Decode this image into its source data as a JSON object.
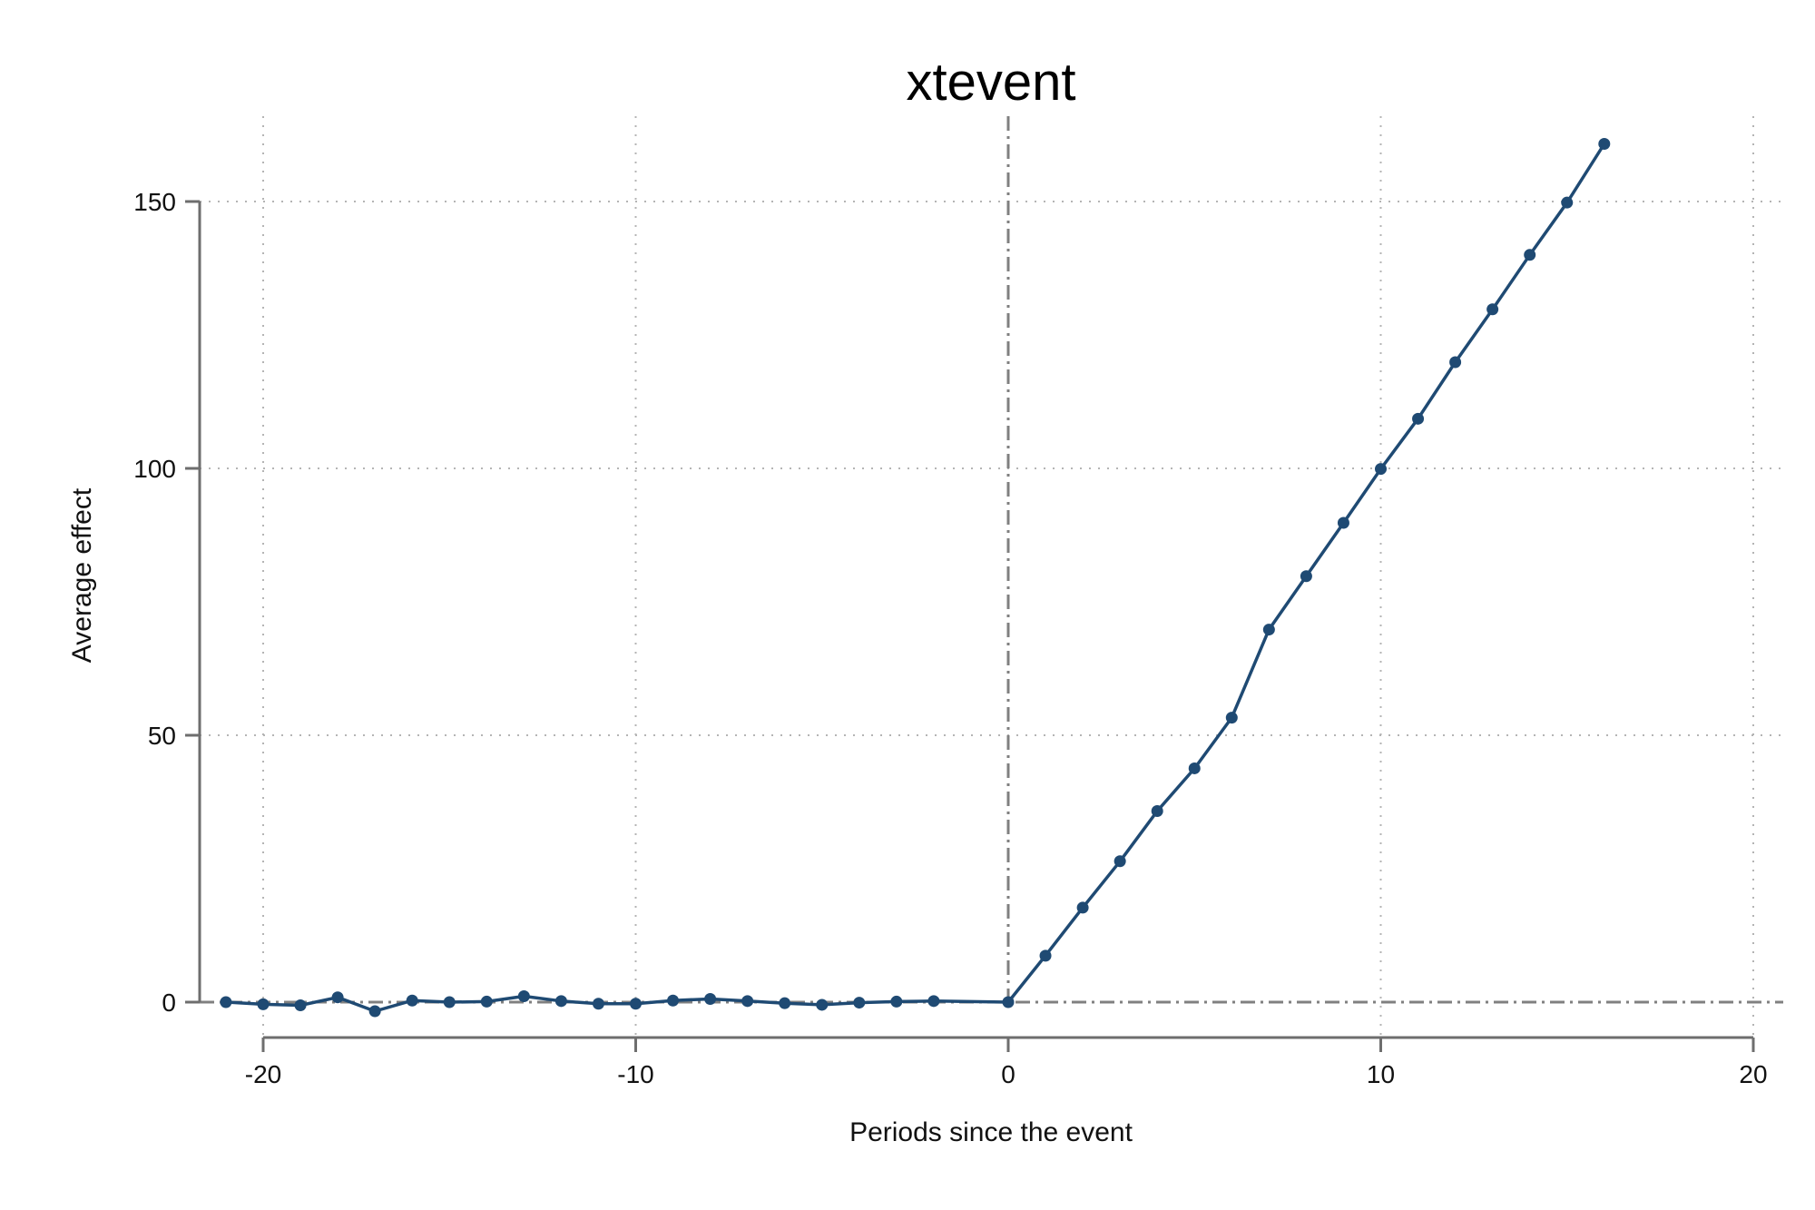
{
  "chart_data": {
    "type": "line",
    "title": "xtevent",
    "xlabel": "Periods since the event",
    "ylabel": "Average effect",
    "xlim": [
      -21.5,
      21
    ],
    "ylim": [
      -7,
      165
    ],
    "xticks": [
      -20,
      -10,
      0,
      10,
      20
    ],
    "xtick_labels": [
      "-20",
      "-10",
      "0",
      "10",
      "20"
    ],
    "yticks": [
      0,
      50,
      100,
      150
    ],
    "ytick_labels": [
      "0",
      "50",
      "100",
      "150"
    ],
    "grid": true,
    "reference_lines": {
      "x": 0,
      "y": 0
    },
    "series": [
      {
        "color": "#1f4a73",
        "x": [
          -21,
          -20,
          -19,
          -18,
          -17,
          -16,
          -15,
          -14,
          -13,
          -12,
          -11,
          -10,
          -9,
          -8,
          -7,
          -6,
          -5,
          -4,
          -3,
          -2,
          0,
          1,
          2,
          3,
          4,
          5,
          6,
          7,
          8,
          9,
          10,
          11,
          12,
          13,
          14,
          15,
          16
        ],
        "y": [
          0.0,
          -0.4,
          -0.6,
          0.9,
          -1.7,
          0.3,
          0.0,
          0.1,
          1.1,
          0.2,
          -0.3,
          -0.3,
          0.3,
          0.6,
          0.2,
          -0.2,
          -0.5,
          -0.1,
          0.1,
          0.2,
          0.0,
          8.7,
          17.7,
          26.4,
          35.8,
          43.8,
          53.3,
          69.8,
          79.8,
          89.8,
          99.9,
          109.3,
          119.9,
          129.8,
          140.0,
          149.8,
          160.8
        ]
      }
    ]
  }
}
